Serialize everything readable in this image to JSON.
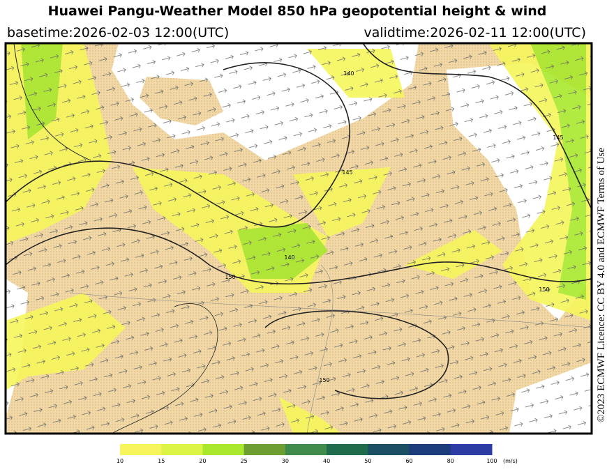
{
  "header": {
    "title": "Huawei Pangu-Weather Model 850 hPa geopotential height & wind",
    "basetime": "basetime:2026-02-03 12:00(UTC)",
    "validtime": "validtime:2026-02-11 12:00(UTC)"
  },
  "map": {
    "contour_labels": [
      "150",
      "140",
      "145",
      "140",
      "150",
      "150",
      "145"
    ]
  },
  "colorbar": {
    "ticks": [
      "10",
      "15",
      "20",
      "25",
      "30",
      "40",
      "50",
      "60",
      "80",
      "100"
    ],
    "colors": [
      "#f6f65c",
      "#dcf446",
      "#a9e82c",
      "#6e9e32",
      "#3f8c4c",
      "#1f6c4c",
      "#1b5064",
      "#1c3c7c",
      "#2c3ca4"
    ],
    "unit": "(m/s)"
  },
  "license": "©2023 ECMWF Licence: CC BY 4.0 and ECMWF Terms of Use"
}
